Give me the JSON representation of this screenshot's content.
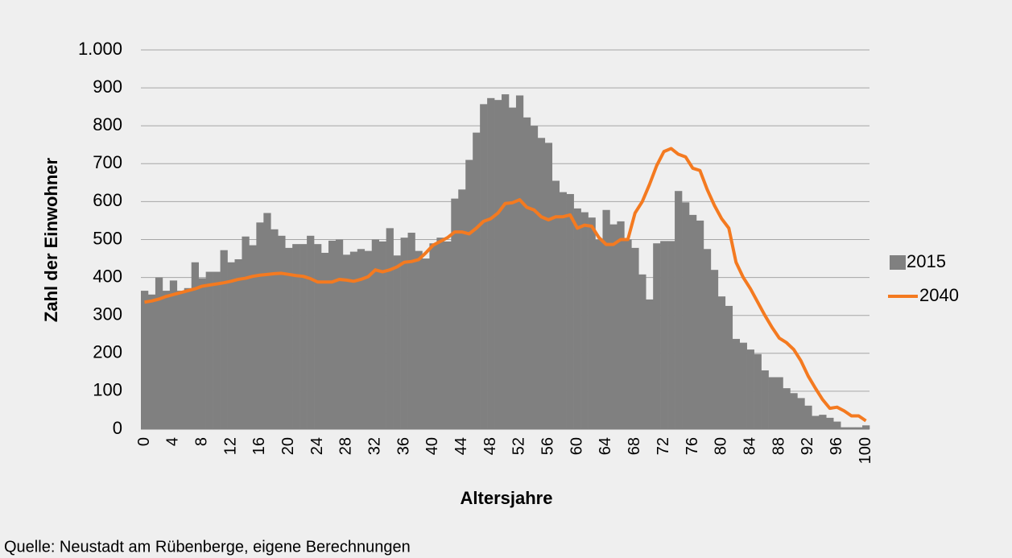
{
  "chart_data": {
    "type": "bar-line",
    "y_label": "Zahl der Einwohner",
    "x_label": "Altersjahre",
    "source": "Quelle: Neustadt am Rübenberge, eigene Berechnungen",
    "categories": [
      0,
      null,
      null,
      null,
      4,
      null,
      null,
      null,
      8,
      null,
      null,
      null,
      12,
      null,
      null,
      null,
      16,
      null,
      null,
      null,
      20,
      null,
      null,
      null,
      24,
      null,
      null,
      null,
      28,
      null,
      null,
      null,
      32,
      null,
      null,
      null,
      36,
      null,
      null,
      null,
      40,
      null,
      null,
      null,
      44,
      null,
      null,
      null,
      48,
      null,
      null,
      null,
      52,
      null,
      null,
      null,
      56,
      null,
      null,
      null,
      60,
      null,
      null,
      null,
      64,
      null,
      null,
      null,
      68,
      null,
      null,
      null,
      72,
      null,
      null,
      null,
      76,
      null,
      null,
      null,
      80,
      null,
      null,
      null,
      84,
      null,
      null,
      null,
      88,
      null,
      null,
      null,
      92,
      null,
      null,
      null,
      96,
      null,
      null,
      null,
      100
    ],
    "series": [
      {
        "name": "2015",
        "type": "bar",
        "color": "#808080",
        "values": [
          365,
          355,
          400,
          365,
          392,
          365,
          372,
          440,
          398,
          415,
          415,
          472,
          440,
          448,
          508,
          485,
          545,
          570,
          527,
          510,
          478,
          488,
          488,
          510,
          488,
          465,
          497,
          500,
          460,
          468,
          475,
          470,
          500,
          495,
          530,
          458,
          505,
          518,
          470,
          450,
          490,
          505,
          495,
          608,
          632,
          710,
          782,
          857,
          873,
          868,
          883,
          848,
          880,
          822,
          800,
          768,
          755,
          655,
          625,
          620,
          582,
          572,
          558,
          500,
          578,
          540,
          548,
          500,
          478,
          408,
          342,
          490,
          496,
          496,
          628,
          598,
          565,
          550,
          475,
          420,
          350,
          325,
          238,
          228,
          210,
          198,
          155,
          137,
          137,
          108,
          95,
          82,
          62,
          35,
          38,
          30,
          20,
          5,
          5,
          5,
          10
        ]
      },
      {
        "name": "2040",
        "type": "line",
        "color": "#f47a20",
        "values": [
          335,
          338,
          343,
          350,
          355,
          360,
          365,
          370,
          377,
          380,
          383,
          386,
          390,
          395,
          398,
          403,
          406,
          408,
          410,
          411,
          408,
          405,
          403,
          397,
          388,
          388,
          388,
          395,
          393,
          390,
          395,
          402,
          420,
          415,
          420,
          428,
          440,
          442,
          447,
          465,
          485,
          495,
          505,
          520,
          520,
          515,
          530,
          548,
          555,
          570,
          595,
          597,
          605,
          585,
          578,
          560,
          552,
          560,
          560,
          565,
          530,
          538,
          535,
          505,
          487,
          487,
          500,
          500,
          570,
          600,
          645,
          695,
          732,
          740,
          725,
          718,
          688,
          682,
          632,
          590,
          555,
          530,
          440,
          400,
          370,
          335,
          300,
          268,
          240,
          228,
          210,
          180,
          140,
          108,
          78,
          55,
          58,
          48,
          35,
          35,
          22
        ]
      }
    ],
    "ylim": [
      0,
      1000
    ],
    "yticks": [
      0,
      100,
      200,
      300,
      400,
      500,
      600,
      700,
      800,
      900,
      {
        "value": 1000,
        "label": "1.000"
      }
    ],
    "grid": true,
    "legend": "right"
  }
}
